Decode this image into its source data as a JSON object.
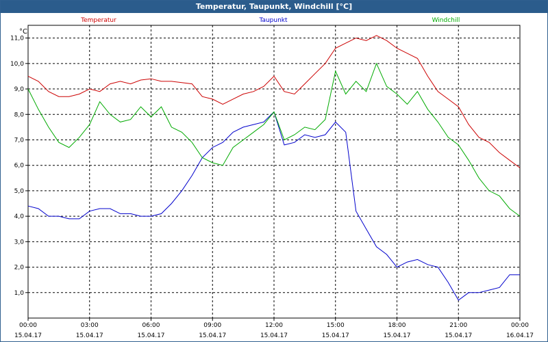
{
  "window": {
    "title": "Temperatur, Taupunkt, Windchill [°C]"
  },
  "chart_data": {
    "type": "line",
    "title": "Temperatur, Taupunkt, Windchill [°C]",
    "ylabel": "°C",
    "ylim": [
      0,
      11.5
    ],
    "xlim": [
      0,
      24
    ],
    "grid": true,
    "legend_position": "top",
    "y_ticks": [
      "1,0",
      "2,0",
      "3,0",
      "4,0",
      "5,0",
      "6,0",
      "7,0",
      "8,0",
      "9,0",
      "10,0",
      "11,0"
    ],
    "y_tick_values": [
      1,
      2,
      3,
      4,
      5,
      6,
      7,
      8,
      9,
      10,
      11
    ],
    "x_ticks": [
      {
        "time": "00:00",
        "date": "15.04.17",
        "hour": 0
      },
      {
        "time": "03:00",
        "date": "15.04.17",
        "hour": 3
      },
      {
        "time": "06:00",
        "date": "15.04.17",
        "hour": 6
      },
      {
        "time": "09:00",
        "date": "15.04.17",
        "hour": 9
      },
      {
        "time": "12:00",
        "date": "15.04.17",
        "hour": 12
      },
      {
        "time": "15:00",
        "date": "15.04.17",
        "hour": 15
      },
      {
        "time": "18:00",
        "date": "15.04.17",
        "hour": 18
      },
      {
        "time": "21:00",
        "date": "15.04.17",
        "hour": 21
      },
      {
        "time": "00:00",
        "date": "16.04.17",
        "hour": 24
      }
    ],
    "series": [
      {
        "name": "Temperatur",
        "color": "#cc0000",
        "x": [
          0,
          0.5,
          1,
          1.5,
          2,
          2.5,
          3,
          3.5,
          4,
          4.5,
          5,
          5.5,
          6,
          6.5,
          7,
          7.5,
          8,
          8.5,
          9,
          9.5,
          10,
          10.5,
          11,
          11.5,
          12,
          12.5,
          13,
          13.5,
          14,
          14.5,
          15,
          15.5,
          16,
          16.5,
          17,
          17.5,
          18,
          18.5,
          19,
          19.5,
          20,
          20.5,
          21,
          21.5,
          22,
          22.5,
          23,
          23.5,
          24
        ],
        "values": [
          9.5,
          9.3,
          8.9,
          8.7,
          8.7,
          8.8,
          9.0,
          8.9,
          9.2,
          9.3,
          9.2,
          9.35,
          9.4,
          9.3,
          9.3,
          9.25,
          9.2,
          8.7,
          8.6,
          8.4,
          8.6,
          8.8,
          8.9,
          9.1,
          9.5,
          8.9,
          8.8,
          9.2,
          9.6,
          10.0,
          10.6,
          10.8,
          11.0,
          10.9,
          11.1,
          10.9,
          10.6,
          10.4,
          10.2,
          9.5,
          8.9,
          8.6,
          8.3,
          7.6,
          7.1,
          6.9,
          6.5,
          6.2,
          5.9
        ]
      },
      {
        "name": "Taupunkt",
        "color": "#0000cc",
        "x": [
          0,
          0.5,
          1,
          1.5,
          2,
          2.5,
          3,
          3.5,
          4,
          4.5,
          5,
          5.5,
          6,
          6.5,
          7,
          7.5,
          8,
          8.5,
          9,
          9.5,
          10,
          10.5,
          11,
          11.5,
          12,
          12.5,
          13,
          13.5,
          14,
          14.5,
          15,
          15.5,
          16,
          16.5,
          17,
          17.5,
          18,
          18.5,
          19,
          19.5,
          20,
          20.5,
          21,
          21.5,
          22,
          22.5,
          23,
          23.5,
          24
        ],
        "values": [
          4.4,
          4.3,
          4.0,
          4.0,
          3.9,
          3.9,
          4.2,
          4.3,
          4.3,
          4.1,
          4.1,
          4.0,
          4.0,
          4.1,
          4.5,
          5.0,
          5.6,
          6.3,
          6.7,
          6.9,
          7.3,
          7.5,
          7.6,
          7.7,
          8.1,
          6.8,
          6.9,
          7.2,
          7.1,
          7.2,
          7.7,
          7.3,
          4.2,
          3.5,
          2.8,
          2.5,
          2.0,
          2.2,
          2.3,
          2.1,
          2.0,
          1.4,
          0.7,
          1.0,
          1.0,
          1.1,
          1.2,
          1.7,
          1.7
        ]
      },
      {
        "name": "Windchill",
        "color": "#00aa00",
        "x": [
          0,
          0.5,
          1,
          1.5,
          2,
          2.5,
          3,
          3.5,
          4,
          4.5,
          5,
          5.5,
          6,
          6.5,
          7,
          7.5,
          8,
          8.5,
          9,
          9.5,
          10,
          10.5,
          11,
          11.5,
          12,
          12.5,
          13,
          13.5,
          14,
          14.5,
          15,
          15.5,
          16,
          16.5,
          17,
          17.5,
          18,
          18.5,
          19,
          19.5,
          20,
          20.5,
          21,
          21.5,
          22,
          22.5,
          23,
          23.5,
          24
        ],
        "values": [
          9.0,
          8.2,
          7.5,
          6.9,
          6.7,
          7.1,
          7.6,
          8.5,
          8.0,
          7.7,
          7.8,
          8.3,
          7.9,
          8.3,
          7.5,
          7.3,
          6.9,
          6.3,
          6.1,
          6.0,
          6.7,
          7.0,
          7.3,
          7.6,
          8.1,
          7.0,
          7.2,
          7.5,
          7.4,
          7.8,
          9.7,
          8.8,
          9.3,
          8.9,
          10.0,
          9.1,
          8.8,
          8.4,
          8.9,
          8.2,
          7.7,
          7.1,
          6.8,
          6.2,
          5.5,
          5.0,
          4.8,
          4.3,
          4.0
        ]
      }
    ]
  }
}
